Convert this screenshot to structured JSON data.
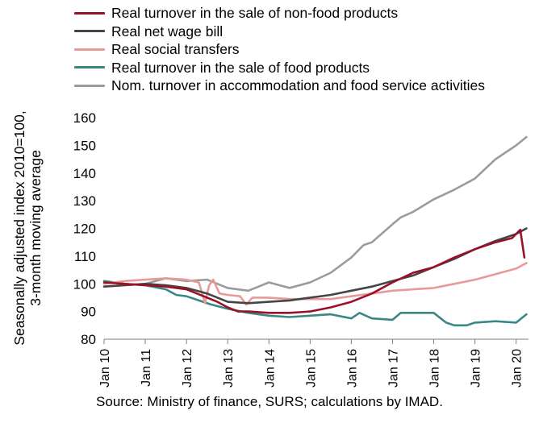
{
  "chart_data": {
    "type": "line",
    "ylabel_line1": "Seasonally adjusted index 2010=100,",
    "ylabel_line2": "3-month moving average",
    "ylim": [
      80,
      160
    ],
    "y_ticks": [
      80,
      90,
      100,
      110,
      120,
      130,
      140,
      150,
      160
    ],
    "x_tick_labels": [
      "Jan 10",
      "Jan 11",
      "Jan 12",
      "Jan 13",
      "Jan 14",
      "Jan 15",
      "Jan 16",
      "Jan 17",
      "Jan 18",
      "Jan 19",
      "Jan 20"
    ],
    "x_range_years": [
      2010.0,
      2020.3
    ],
    "grid": false,
    "legend_position": "top",
    "series": [
      {
        "name": "Real turnover in the sale of non-food products",
        "color": "#9b1028",
        "x": [
          2010.0,
          2010.5,
          2011.0,
          2011.5,
          2012.0,
          2012.5,
          2012.75,
          2013.0,
          2013.25,
          2013.5,
          2014.0,
          2014.5,
          2015.0,
          2015.5,
          2016.0,
          2016.5,
          2017.0,
          2017.5,
          2018.0,
          2018.5,
          2019.0,
          2019.5,
          2019.9,
          2020.1,
          2020.2
        ],
        "values": [
          100.5,
          100,
          99.5,
          99,
          98,
          95,
          93.5,
          91.5,
          90,
          90,
          89.5,
          89.5,
          90,
          91.5,
          93.5,
          96.5,
          100.5,
          104,
          106,
          109.5,
          112.5,
          115,
          116.5,
          119.5,
          109.5
        ]
      },
      {
        "name": "Real net wage bill",
        "color": "#454545",
        "x": [
          2010.0,
          2010.5,
          2011.0,
          2011.5,
          2012.0,
          2012.5,
          2013.0,
          2013.5,
          2014.0,
          2014.5,
          2015.0,
          2015.5,
          2016.0,
          2016.5,
          2017.0,
          2017.5,
          2018.0,
          2018.5,
          2019.0,
          2019.5,
          2020.0,
          2020.25
        ],
        "values": [
          99,
          99.5,
          100,
          99.5,
          98.5,
          96.5,
          93.5,
          93,
          93.5,
          94,
          95,
          96,
          97.5,
          99,
          101,
          103,
          106,
          109,
          112.5,
          115.5,
          118,
          120
        ]
      },
      {
        "name": "Real social transfers",
        "color": "#e79b98",
        "x": [
          2010.0,
          2010.5,
          2011.0,
          2011.5,
          2012.0,
          2012.3,
          2012.45,
          2012.55,
          2012.65,
          2012.8,
          2013.0,
          2013.3,
          2013.45,
          2013.6,
          2014.0,
          2014.5,
          2015.0,
          2015.5,
          2016.0,
          2016.5,
          2017.0,
          2017.5,
          2018.0,
          2018.5,
          2019.0,
          2019.5,
          2020.0,
          2020.25
        ],
        "values": [
          100,
          101,
          101.5,
          102,
          101.5,
          100.5,
          93,
          99.5,
          101.5,
          96.5,
          96,
          95.5,
          92.5,
          95,
          95,
          94.5,
          94.5,
          94.5,
          95.5,
          96.5,
          97.5,
          98,
          98.5,
          100,
          101.5,
          103.5,
          105.5,
          107.5
        ]
      },
      {
        "name": "Real turnover in the sale of food products",
        "color": "#3a8787",
        "x": [
          2010.0,
          2010.5,
          2011.0,
          2011.5,
          2011.75,
          2012.0,
          2012.3,
          2012.6,
          2013.0,
          2013.5,
          2014.0,
          2014.5,
          2015.0,
          2015.5,
          2016.0,
          2016.2,
          2016.5,
          2017.0,
          2017.2,
          2017.5,
          2018.0,
          2018.3,
          2018.5,
          2018.8,
          2019.0,
          2019.5,
          2020.0,
          2020.25
        ],
        "values": [
          101,
          100,
          99.5,
          98,
          96,
          95.5,
          94,
          92.5,
          91,
          89.5,
          88.5,
          88,
          88.5,
          89,
          87.5,
          89.5,
          87.5,
          87,
          89.5,
          89.5,
          89.5,
          86,
          85,
          85,
          86,
          86.5,
          86,
          89
        ]
      },
      {
        "name": "Nom. turnover in accommodation and food service activities",
        "color": "#9b9b9b",
        "x": [
          2010.0,
          2010.5,
          2011.0,
          2011.5,
          2012.0,
          2012.5,
          2013.0,
          2013.5,
          2014.0,
          2014.5,
          2015.0,
          2015.5,
          2016.0,
          2016.3,
          2016.5,
          2017.0,
          2017.2,
          2017.5,
          2018.0,
          2018.5,
          2019.0,
          2019.5,
          2020.0,
          2020.25
        ],
        "values": [
          99,
          99.5,
          100,
          102,
          101,
          101.5,
          98.5,
          97.5,
          100.5,
          98.5,
          100.5,
          104,
          109.5,
          114,
          115,
          121.5,
          124,
          126,
          130.5,
          134,
          138,
          145,
          150,
          153
        ]
      }
    ]
  },
  "source_text": "Source: Ministry of finance, SURS; calculations by IMAD."
}
